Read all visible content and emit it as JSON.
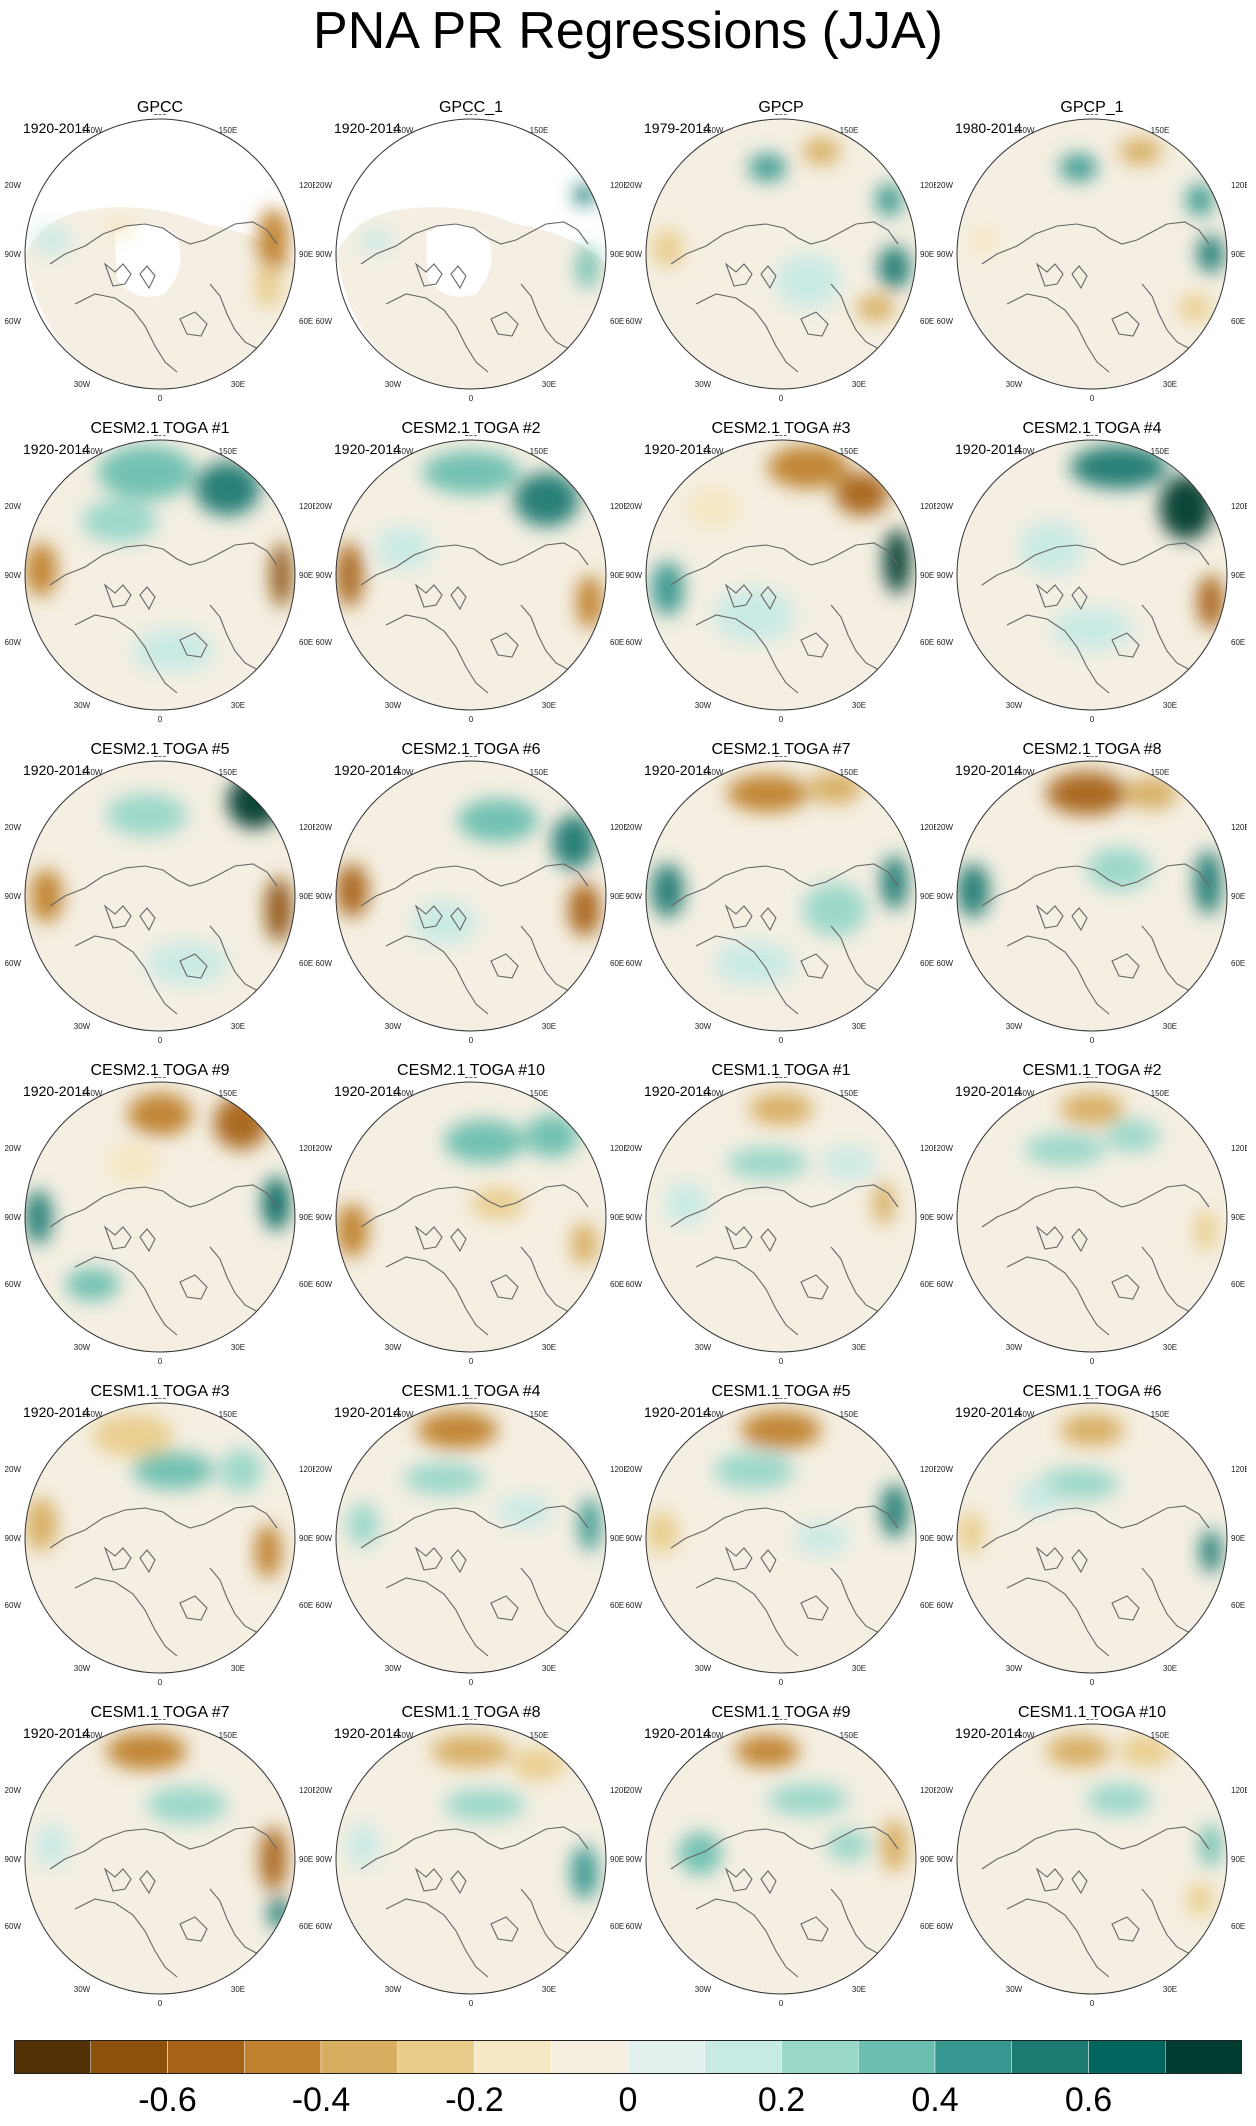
{
  "title": "PNA PR Regressions (JJA)",
  "panels": [
    {
      "title": "GPCC",
      "years": "1920-2014",
      "masked": true,
      "blobs": [
        [
          0.92,
          0.45,
          0.06,
          0.12,
          -0.5
        ],
        [
          0.9,
          0.62,
          0.05,
          0.08,
          -0.3
        ],
        [
          0.1,
          0.45,
          0.07,
          0.05,
          0.15
        ],
        [
          0.35,
          0.4,
          0.05,
          0.04,
          -0.15
        ]
      ]
    },
    {
      "title": "GPCC_1",
      "years": "1920-2014",
      "masked": true,
      "blobs": [
        [
          0.92,
          0.28,
          0.04,
          0.04,
          0.6
        ],
        [
          0.93,
          0.55,
          0.04,
          0.08,
          0.3
        ],
        [
          0.15,
          0.45,
          0.06,
          0.04,
          0.1
        ]
      ]
    },
    {
      "title": "GPCP",
      "years": "1979-2014",
      "masked": false,
      "blobs": [
        [
          0.45,
          0.18,
          0.07,
          0.05,
          0.45
        ],
        [
          0.65,
          0.12,
          0.07,
          0.05,
          -0.35
        ],
        [
          0.9,
          0.3,
          0.05,
          0.06,
          0.4
        ],
        [
          0.92,
          0.55,
          0.06,
          0.08,
          0.5
        ],
        [
          0.85,
          0.7,
          0.07,
          0.05,
          -0.4
        ],
        [
          0.08,
          0.48,
          0.06,
          0.07,
          -0.3
        ],
        [
          0.6,
          0.6,
          0.12,
          0.1,
          0.12
        ]
      ]
    },
    {
      "title": "GPCP_1",
      "years": "1980-2014",
      "masked": false,
      "blobs": [
        [
          0.45,
          0.18,
          0.07,
          0.05,
          0.45
        ],
        [
          0.68,
          0.12,
          0.08,
          0.05,
          -0.35
        ],
        [
          0.9,
          0.3,
          0.05,
          0.06,
          0.4
        ],
        [
          0.94,
          0.5,
          0.05,
          0.07,
          0.5
        ],
        [
          0.88,
          0.7,
          0.06,
          0.05,
          -0.3
        ],
        [
          0.1,
          0.45,
          0.05,
          0.06,
          -0.2
        ]
      ]
    },
    {
      "title": "CESM2.1 TOGA #1",
      "years": "1920-2014",
      "masked": false,
      "blobs": [
        [
          0.45,
          0.12,
          0.18,
          0.1,
          0.35
        ],
        [
          0.75,
          0.18,
          0.12,
          0.1,
          0.6
        ],
        [
          0.06,
          0.48,
          0.06,
          0.1,
          -0.5
        ],
        [
          0.95,
          0.5,
          0.04,
          0.12,
          -0.65
        ],
        [
          0.35,
          0.3,
          0.14,
          0.08,
          0.25
        ],
        [
          0.55,
          0.78,
          0.15,
          0.08,
          0.1
        ]
      ]
    },
    {
      "title": "CESM2.1 TOGA #2",
      "years": "1920-2014",
      "masked": false,
      "blobs": [
        [
          0.5,
          0.12,
          0.18,
          0.08,
          0.35
        ],
        [
          0.78,
          0.22,
          0.12,
          0.1,
          0.6
        ],
        [
          0.05,
          0.5,
          0.05,
          0.12,
          -0.6
        ],
        [
          0.94,
          0.6,
          0.05,
          0.1,
          -0.5
        ],
        [
          0.25,
          0.4,
          0.1,
          0.08,
          0.15
        ]
      ]
    },
    {
      "title": "CESM2.1 TOGA #3",
      "years": "1920-2014",
      "masked": false,
      "blobs": [
        [
          0.6,
          0.1,
          0.15,
          0.08,
          -0.5
        ],
        [
          0.8,
          0.2,
          0.1,
          0.08,
          -0.55
        ],
        [
          0.93,
          0.45,
          0.05,
          0.12,
          0.7
        ],
        [
          0.08,
          0.55,
          0.06,
          0.1,
          0.4
        ],
        [
          0.4,
          0.65,
          0.15,
          0.1,
          0.15
        ],
        [
          0.25,
          0.25,
          0.1,
          0.08,
          -0.2
        ]
      ]
    },
    {
      "title": "CESM2.1 TOGA #4",
      "years": "1920-2014",
      "masked": false,
      "blobs": [
        [
          0.6,
          0.1,
          0.18,
          0.08,
          0.55
        ],
        [
          0.85,
          0.25,
          0.1,
          0.12,
          0.7
        ],
        [
          0.94,
          0.6,
          0.05,
          0.1,
          -0.6
        ],
        [
          0.35,
          0.4,
          0.12,
          0.1,
          0.15
        ],
        [
          0.5,
          0.7,
          0.15,
          0.08,
          0.1
        ]
      ]
    },
    {
      "title": "CESM2.1 TOGA #5",
      "years": "1920-2014",
      "masked": false,
      "blobs": [
        [
          0.85,
          0.15,
          0.1,
          0.1,
          0.75
        ],
        [
          0.94,
          0.55,
          0.05,
          0.12,
          -0.65
        ],
        [
          0.08,
          0.5,
          0.06,
          0.1,
          -0.5
        ],
        [
          0.45,
          0.2,
          0.15,
          0.08,
          0.2
        ],
        [
          0.6,
          0.75,
          0.15,
          0.08,
          0.1
        ]
      ]
    },
    {
      "title": "CESM2.1 TOGA #6",
      "years": "1920-2014",
      "masked": false,
      "blobs": [
        [
          0.6,
          0.22,
          0.15,
          0.08,
          0.35
        ],
        [
          0.88,
          0.3,
          0.08,
          0.1,
          0.55
        ],
        [
          0.92,
          0.55,
          0.06,
          0.1,
          -0.55
        ],
        [
          0.06,
          0.48,
          0.06,
          0.1,
          -0.55
        ],
        [
          0.4,
          0.6,
          0.12,
          0.08,
          0.1
        ]
      ]
    },
    {
      "title": "CESM2.1 TOGA #7",
      "years": "1920-2014",
      "masked": false,
      "blobs": [
        [
          0.45,
          0.12,
          0.15,
          0.07,
          -0.45
        ],
        [
          0.7,
          0.1,
          0.1,
          0.06,
          -0.35
        ],
        [
          0.08,
          0.48,
          0.06,
          0.1,
          0.5
        ],
        [
          0.92,
          0.45,
          0.05,
          0.1,
          0.55
        ],
        [
          0.7,
          0.55,
          0.12,
          0.1,
          0.2
        ],
        [
          0.4,
          0.75,
          0.15,
          0.08,
          0.1
        ]
      ]
    },
    {
      "title": "CESM2.1 TOGA #8",
      "years": "1920-2014",
      "masked": false,
      "blobs": [
        [
          0.48,
          0.12,
          0.15,
          0.08,
          -0.55
        ],
        [
          0.72,
          0.12,
          0.1,
          0.06,
          -0.4
        ],
        [
          0.06,
          0.48,
          0.06,
          0.1,
          0.55
        ],
        [
          0.93,
          0.45,
          0.05,
          0.12,
          0.6
        ],
        [
          0.6,
          0.4,
          0.12,
          0.08,
          0.2
        ]
      ]
    },
    {
      "title": "CESM2.1 TOGA #9",
      "years": "1920-2014",
      "masked": false,
      "blobs": [
        [
          0.5,
          0.12,
          0.12,
          0.08,
          -0.5
        ],
        [
          0.8,
          0.15,
          0.1,
          0.1,
          -0.55
        ],
        [
          0.93,
          0.45,
          0.05,
          0.1,
          0.65
        ],
        [
          0.05,
          0.5,
          0.05,
          0.1,
          0.55
        ],
        [
          0.25,
          0.75,
          0.1,
          0.06,
          0.3
        ],
        [
          0.4,
          0.3,
          0.1,
          0.08,
          -0.15
        ]
      ]
    },
    {
      "title": "CESM2.1 TOGA #10",
      "years": "1920-2014",
      "masked": false,
      "blobs": [
        [
          0.55,
          0.22,
          0.15,
          0.08,
          0.35
        ],
        [
          0.8,
          0.2,
          0.1,
          0.08,
          0.3
        ],
        [
          0.06,
          0.55,
          0.06,
          0.1,
          -0.45
        ],
        [
          0.92,
          0.6,
          0.05,
          0.08,
          -0.4
        ],
        [
          0.6,
          0.45,
          0.1,
          0.06,
          -0.3
        ]
      ]
    },
    {
      "title": "CESM1.1 TOGA #1",
      "years": "1920-2014",
      "masked": false,
      "blobs": [
        [
          0.5,
          0.1,
          0.12,
          0.06,
          -0.4
        ],
        [
          0.45,
          0.3,
          0.15,
          0.06,
          0.25
        ],
        [
          0.88,
          0.45,
          0.04,
          0.08,
          -0.35
        ],
        [
          0.15,
          0.45,
          0.08,
          0.08,
          0.1
        ],
        [
          0.75,
          0.3,
          0.1,
          0.06,
          0.15
        ]
      ]
    },
    {
      "title": "CESM1.1 TOGA #2",
      "years": "1920-2014",
      "masked": false,
      "blobs": [
        [
          0.5,
          0.1,
          0.12,
          0.06,
          -0.4
        ],
        [
          0.4,
          0.25,
          0.15,
          0.06,
          0.2
        ],
        [
          0.92,
          0.55,
          0.04,
          0.08,
          -0.3
        ],
        [
          0.65,
          0.2,
          0.1,
          0.06,
          0.2
        ]
      ]
    },
    {
      "title": "CESM1.1 TOGA #3",
      "years": "1920-2014",
      "masked": false,
      "blobs": [
        [
          0.4,
          0.12,
          0.15,
          0.08,
          -0.3
        ],
        [
          0.55,
          0.25,
          0.15,
          0.07,
          0.3
        ],
        [
          0.06,
          0.45,
          0.06,
          0.1,
          -0.35
        ],
        [
          0.9,
          0.55,
          0.05,
          0.1,
          -0.45
        ],
        [
          0.8,
          0.25,
          0.08,
          0.08,
          0.25
        ]
      ]
    },
    {
      "title": "CESM1.1 TOGA #4",
      "years": "1920-2014",
      "masked": false,
      "blobs": [
        [
          0.45,
          0.1,
          0.15,
          0.07,
          -0.5
        ],
        [
          0.4,
          0.28,
          0.15,
          0.06,
          0.2
        ],
        [
          0.94,
          0.45,
          0.04,
          0.1,
          0.45
        ],
        [
          0.1,
          0.45,
          0.06,
          0.08,
          0.2
        ],
        [
          0.7,
          0.4,
          0.1,
          0.06,
          0.15
        ]
      ]
    },
    {
      "title": "CESM1.1 TOGA #5",
      "years": "1920-2014",
      "masked": false,
      "blobs": [
        [
          0.5,
          0.1,
          0.15,
          0.07,
          -0.5
        ],
        [
          0.4,
          0.25,
          0.15,
          0.07,
          0.25
        ],
        [
          0.92,
          0.4,
          0.05,
          0.1,
          0.5
        ],
        [
          0.06,
          0.48,
          0.06,
          0.08,
          -0.25
        ],
        [
          0.65,
          0.5,
          0.1,
          0.06,
          0.15
        ]
      ]
    },
    {
      "title": "CESM1.1 TOGA #6",
      "years": "1920-2014",
      "masked": false,
      "blobs": [
        [
          0.5,
          0.1,
          0.12,
          0.06,
          -0.35
        ],
        [
          0.45,
          0.3,
          0.15,
          0.06,
          0.2
        ],
        [
          0.94,
          0.55,
          0.04,
          0.08,
          0.5
        ],
        [
          0.05,
          0.48,
          0.05,
          0.08,
          -0.3
        ],
        [
          0.3,
          0.35,
          0.08,
          0.06,
          0.15
        ]
      ]
    },
    {
      "title": "CESM1.1 TOGA #7",
      "years": "1920-2014",
      "masked": false,
      "blobs": [
        [
          0.45,
          0.1,
          0.15,
          0.07,
          -0.45
        ],
        [
          0.6,
          0.3,
          0.15,
          0.07,
          0.25
        ],
        [
          0.92,
          0.5,
          0.05,
          0.12,
          -0.55
        ],
        [
          0.94,
          0.7,
          0.04,
          0.06,
          0.5
        ],
        [
          0.1,
          0.45,
          0.06,
          0.08,
          0.15
        ]
      ]
    },
    {
      "title": "CESM1.1 TOGA #8",
      "years": "1920-2014",
      "masked": false,
      "blobs": [
        [
          0.5,
          0.1,
          0.15,
          0.06,
          -0.35
        ],
        [
          0.75,
          0.15,
          0.1,
          0.06,
          -0.3
        ],
        [
          0.55,
          0.3,
          0.15,
          0.06,
          0.2
        ],
        [
          0.92,
          0.55,
          0.05,
          0.1,
          0.45
        ],
        [
          0.1,
          0.45,
          0.06,
          0.08,
          0.15
        ]
      ]
    },
    {
      "title": "CESM1.1 TOGA #9",
      "years": "1920-2014",
      "masked": false,
      "blobs": [
        [
          0.45,
          0.1,
          0.12,
          0.06,
          -0.5
        ],
        [
          0.6,
          0.28,
          0.15,
          0.06,
          0.25
        ],
        [
          0.92,
          0.45,
          0.05,
          0.1,
          -0.35
        ],
        [
          0.2,
          0.48,
          0.08,
          0.08,
          0.3
        ],
        [
          0.75,
          0.45,
          0.08,
          0.06,
          0.2
        ]
      ]
    },
    {
      "title": "CESM1.1 TOGA #10",
      "years": "1920-2014",
      "masked": false,
      "blobs": [
        [
          0.45,
          0.1,
          0.12,
          0.06,
          -0.4
        ],
        [
          0.7,
          0.1,
          0.1,
          0.06,
          -0.3
        ],
        [
          0.6,
          0.28,
          0.12,
          0.06,
          0.2
        ],
        [
          0.94,
          0.45,
          0.04,
          0.08,
          0.35
        ],
        [
          0.9,
          0.65,
          0.05,
          0.06,
          -0.25
        ]
      ]
    }
  ],
  "lon_labels": {
    "top": "180",
    "top_left": "150W",
    "top_right": "150E",
    "upper_left": "120W",
    "upper_right": "120E",
    "left": "90W",
    "right": "90E",
    "lower_left": "60W",
    "lower_right": "60E",
    "bottom_left": "30W",
    "bottom_right": "30E",
    "bottom": "0"
  },
  "colorbar": {
    "colors": [
      "#543005",
      "#8c510a",
      "#a86218",
      "#bf812d",
      "#d7ad5f",
      "#e9cc8a",
      "#f6e8c3",
      "#f5efe2",
      "#e2f1ee",
      "#c7eae5",
      "#99d7c9",
      "#6bbfb0",
      "#35978f",
      "#1b7a72",
      "#01665e",
      "#003c30"
    ],
    "labels": [
      "-0.6",
      "-0.4",
      "-0.2",
      "0",
      "0.2",
      "0.4",
      "0.6"
    ],
    "label_values": [
      -0.6,
      -0.4,
      -0.2,
      0,
      0.2,
      0.4,
      0.6
    ],
    "min": -0.8,
    "max": 0.8
  }
}
